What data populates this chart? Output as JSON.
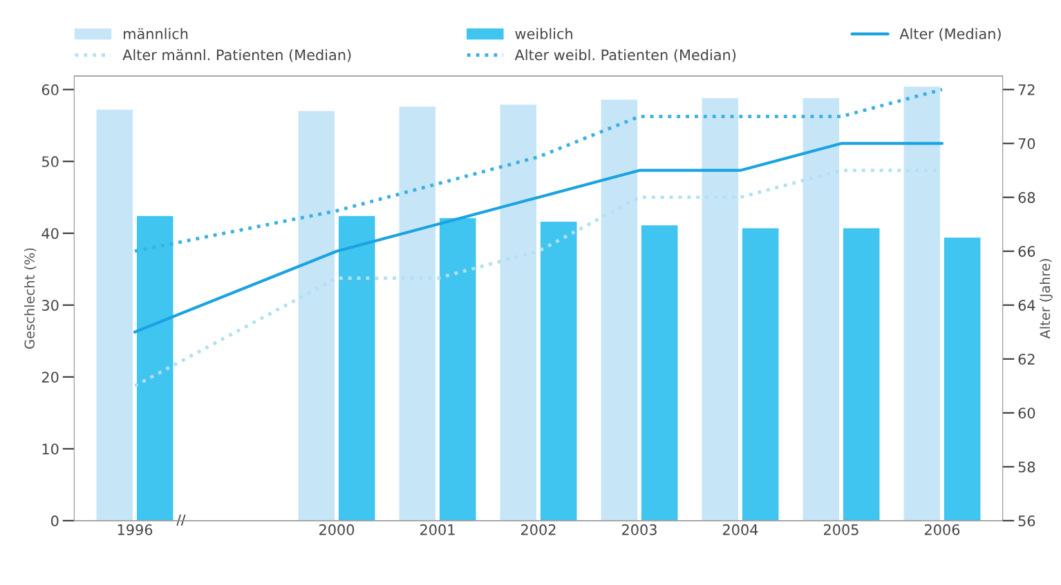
{
  "chart_data": {
    "type": "bar",
    "categories": [
      "1996",
      null,
      "2000",
      "2001",
      "2002",
      "2003",
      "2004",
      "2005",
      "2006"
    ],
    "series": [
      {
        "name": "männlich",
        "color": "#c6e6f7",
        "values": [
          57.2,
          null,
          57.0,
          57.6,
          57.9,
          58.6,
          58.8,
          58.8,
          60.4
        ]
      },
      {
        "name": "weiblich",
        "color": "#40c4f0",
        "values": [
          42.4,
          null,
          42.4,
          42.1,
          41.6,
          41.1,
          40.7,
          40.7,
          39.4
        ]
      },
      {
        "name": "Alter (Median)",
        "type": "line",
        "axis": "y2",
        "line_style": "solid",
        "color": "#1aa3e0",
        "values": [
          63,
          null,
          66,
          67,
          68,
          69,
          69,
          70,
          70
        ]
      },
      {
        "name": "Alter männl. Patienten (Median)",
        "type": "line",
        "axis": "y2",
        "line_style": "dotted",
        "color": "#b5dff2",
        "values": [
          61,
          null,
          65,
          65,
          66,
          68,
          68,
          69,
          69
        ]
      },
      {
        "name": "Alter weibl. Patienten (Median)",
        "type": "line",
        "axis": "y2",
        "line_style": "dotted",
        "color": "#3bb0e0",
        "values": [
          66,
          null,
          67.5,
          68.5,
          69.5,
          71,
          71,
          71,
          72
        ]
      }
    ],
    "ylabel": "Geschlecht (%)",
    "y2label": "Alter (Jahre)",
    "ylim": [
      0,
      61.875
    ],
    "yticks": [
      0,
      10,
      20,
      30,
      40,
      50,
      60
    ],
    "y2lim": [
      56,
      72.5
    ],
    "y2ticks": [
      56,
      58,
      60,
      62,
      64,
      66,
      68,
      70,
      72
    ],
    "annotations": [
      "//"
    ],
    "legend": "top",
    "grid": false
  }
}
